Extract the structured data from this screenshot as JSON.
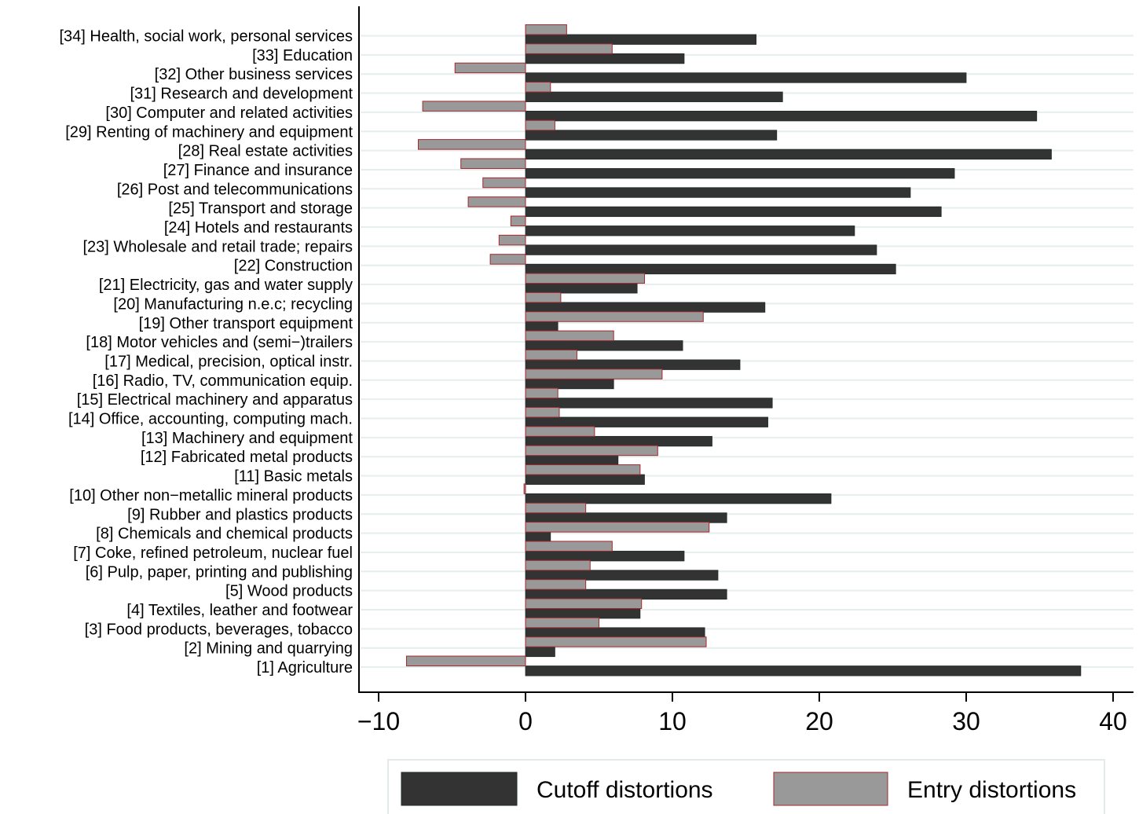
{
  "chart_data": {
    "type": "bar",
    "orientation": "horizontal",
    "title": "",
    "xlabel": "",
    "ylabel": "",
    "xlim": [
      -10,
      40
    ],
    "xticks": [
      -10,
      0,
      10,
      20,
      30,
      40
    ],
    "xtick_labels": [
      "−10",
      "0",
      "10",
      "20",
      "30",
      "40"
    ],
    "grid": true,
    "legend_position": "bottom",
    "categories": [
      "[34] Health, social work, personal services",
      "[33] Education ",
      "[32] Other business services",
      "[31] Research and development",
      "[30] Computer and related activities",
      "[29] Renting of machinery and equipment",
      "[28] Real estate activities",
      "[27] Finance and insurance",
      "[26] Post and telecommunications",
      "[25] Transport and storage ",
      "[24] Hotels and restaurants",
      "[23] Wholesale and retail trade; repairs",
      "[22] Construction ",
      "[21] Electricity, gas and water supply",
      "[20] Manufacturing n.e.c; recycling",
      "[19] Other transport equipment",
      "[18] Motor vehicles and (semi−)trailers",
      "[17] Medical, precision, optical instr.",
      "[16] Radio, TV, communication equip.",
      "[15] Electrical machinery and apparatus",
      "[14] Office, accounting, computing mach.",
      "[13] Machinery and equipment",
      "[12] Fabricated metal products",
      "[11] Basic metals",
      "[10] Other non−metallic mineral products",
      "[9] Rubber and plastics products",
      "[8] Chemicals and chemical products",
      "[7] Coke, refined petroleum, nuclear fuel",
      "[6] Pulp, paper, printing and publishing",
      "[5] Wood products ",
      "[4] Textiles, leather and footwear",
      "[3] Food products, beverages, tobacco",
      "[2] Mining and quarrying",
      "[1] Agriculture "
    ],
    "series": [
      {
        "name": "Cutoff distortions",
        "color": "#333333",
        "values": [
          15.7,
          10.8,
          30.0,
          17.5,
          34.8,
          17.1,
          35.8,
          29.2,
          26.2,
          28.3,
          22.4,
          23.9,
          25.2,
          7.6,
          16.3,
          2.2,
          10.7,
          14.6,
          6.0,
          16.8,
          16.5,
          12.7,
          6.3,
          8.1,
          20.8,
          13.7,
          1.7,
          10.8,
          13.1,
          13.7,
          7.8,
          12.2,
          2.0,
          37.8
        ]
      },
      {
        "name": "Entry distortions",
        "color": "#999999",
        "border_color": "#a0282e",
        "values": [
          2.8,
          5.9,
          -4.8,
          1.7,
          -7.0,
          2.0,
          -7.3,
          -4.4,
          -2.9,
          -3.9,
          -1.0,
          -1.8,
          -2.4,
          8.1,
          2.4,
          12.1,
          6.0,
          3.5,
          9.3,
          2.2,
          2.3,
          4.7,
          9.0,
          7.8,
          -0.1,
          4.1,
          12.5,
          5.9,
          4.4,
          4.1,
          7.9,
          5.0,
          12.3,
          -8.1
        ]
      }
    ]
  }
}
